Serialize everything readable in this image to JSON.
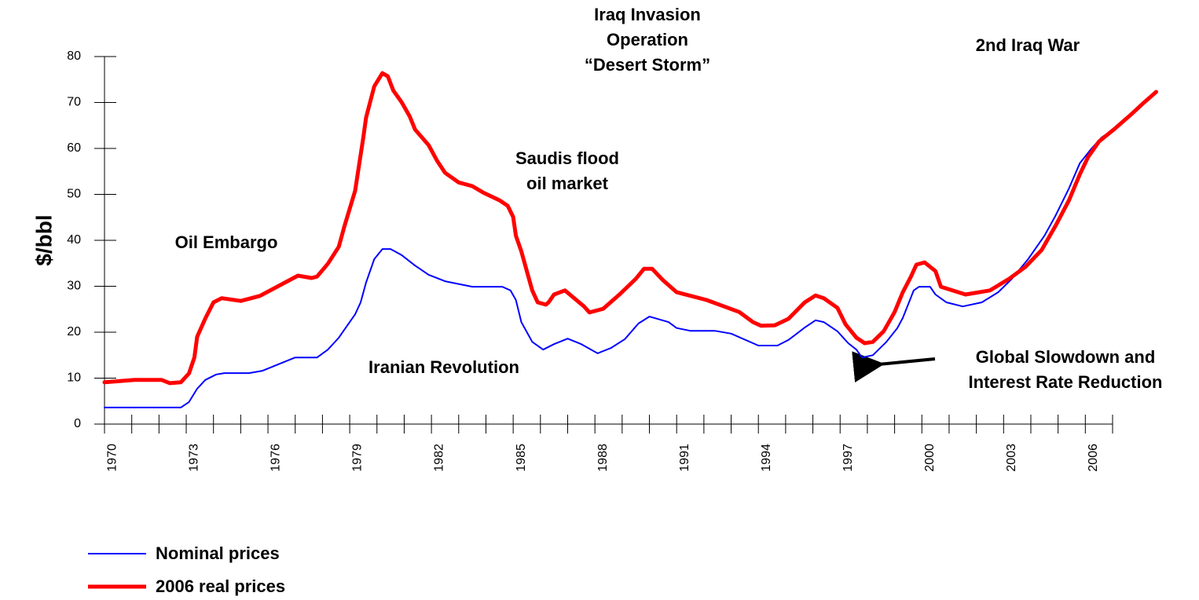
{
  "chart_data": {
    "type": "line",
    "y_label": "$/bbl",
    "xlim": [
      1970,
      2007
    ],
    "ylim": [
      0,
      80
    ],
    "yticks": [
      0,
      10,
      20,
      30,
      40,
      50,
      60,
      70,
      80
    ],
    "xticks": [
      1970,
      1973,
      1976,
      1979,
      1982,
      1985,
      1988,
      1991,
      1994,
      1997,
      2000,
      2003,
      2006
    ],
    "legend": "bottom-left",
    "annotations": [
      [
        "Oil Embargo"
      ],
      [
        "Iranian Revolution"
      ],
      [
        "Saudis flood",
        "oil market"
      ],
      [
        "Iraq Invasion",
        "Operation",
        "“Desert Storm”"
      ],
      [
        "2nd Iraq War"
      ],
      [
        "Global Slowdown and",
        "Interest Rate Reduction"
      ]
    ],
    "series": [
      {
        "name": "Nominal prices",
        "color": "#0000ff",
        "x": [
          1970,
          1972.8,
          1973.1,
          1973.4,
          1973.7,
          1974.1,
          1974.4,
          1975.3,
          1975.8,
          1977,
          1977.8,
          1978.2,
          1978.6,
          1978.8,
          1979.2,
          1979.4,
          1979.6,
          1979.9,
          1980.2,
          1980.5,
          1980.9,
          1981.4,
          1981.9,
          1982.5,
          1983.5,
          1984.6,
          1984.9,
          1985.1,
          1985.3,
          1985.7,
          1986.1,
          1986.5,
          1987,
          1987.5,
          1988.1,
          1988.6,
          1989.1,
          1989.6,
          1990,
          1990.7,
          1991,
          1991.5,
          1992.4,
          1993,
          1994,
          1994.7,
          1995.1,
          1995.7,
          1996.1,
          1996.4,
          1996.9,
          1997.3,
          1997.6,
          1997.8,
          1998.2,
          1998.7,
          1999.1,
          1999.3,
          1999.7,
          1999.9,
          2000.3,
          2000.5,
          2000.9,
          2001.5,
          2002.2,
          2002.8,
          2003.3,
          2003.9,
          2004.5,
          2004.9,
          2005.4,
          2005.8,
          2006.2,
          2006.6,
          2007.1,
          2007.7,
          2008.1,
          2008.6
        ],
        "values": [
          3.6,
          3.6,
          4.8,
          7.7,
          9.6,
          10.8,
          11.1,
          11.1,
          11.6,
          14.5,
          14.5,
          16.2,
          18.8,
          20.5,
          23.9,
          26.5,
          30.8,
          35.9,
          38.1,
          38.1,
          36.8,
          34.5,
          32.5,
          31.1,
          29.9,
          29.9,
          29.1,
          27,
          22.2,
          17.9,
          16.2,
          17.4,
          18.6,
          17.4,
          15.4,
          16.6,
          18.5,
          21.9,
          23.4,
          22.2,
          20.9,
          20.3,
          20.3,
          19.7,
          17.1,
          17.1,
          18.3,
          21,
          22.6,
          22.2,
          20.2,
          17.6,
          16.2,
          14.5,
          15,
          17.9,
          20.9,
          23.1,
          29.1,
          29.9,
          29.9,
          28.2,
          26.5,
          25.6,
          26.5,
          28.7,
          31.6,
          35.9,
          41,
          45.3,
          51.3,
          56.8,
          59.8,
          62.4,
          64.4,
          67.5,
          69.7,
          72.3
        ]
      },
      {
        "name": "2006 real prices",
        "color": "#ff0000",
        "x": [
          1970,
          1971.1,
          1972.1,
          1972.4,
          1972.8,
          1973.1,
          1973.3,
          1973.4,
          1973.7,
          1974,
          1974.3,
          1975,
          1975.7,
          1977.1,
          1977.6,
          1977.8,
          1978.2,
          1978.6,
          1978.8,
          1979.2,
          1979.3,
          1979.5,
          1979.6,
          1979.9,
          1980.2,
          1980.4,
          1980.6,
          1980.9,
          1981.2,
          1981.4,
          1981.9,
          1982.2,
          1982.5,
          1983,
          1983.5,
          1983.9,
          1984.5,
          1984.8,
          1985,
          1985.1,
          1985.3,
          1985.5,
          1985.7,
          1985.9,
          1986.2,
          1986.3,
          1986.5,
          1986.9,
          1987.6,
          1987.8,
          1988.3,
          1988.9,
          1989.5,
          1989.8,
          1990.1,
          1990.5,
          1991,
          1992.1,
          1993.3,
          1993.8,
          1994.1,
          1994.6,
          1995.1,
          1995.7,
          1996.1,
          1996.4,
          1996.9,
          1997.2,
          1997.6,
          1997.9,
          1998.2,
          1998.6,
          1999,
          1999.3,
          1999.6,
          1999.8,
          2000.1,
          2000.5,
          2000.7,
          2001.6,
          2002.5,
          2003.2,
          2003.8,
          2004.4,
          2004.9,
          2005.4,
          2005.8,
          2006.1,
          2006.5,
          2007.1,
          2007.7,
          2008.1,
          2008.6
        ],
        "values": [
          9.1,
          9.6,
          9.6,
          8.9,
          9.1,
          11,
          14.5,
          19,
          23,
          26.5,
          27.4,
          26.8,
          27.9,
          32.3,
          31.8,
          32.1,
          34.9,
          38.6,
          42.9,
          50.8,
          54.7,
          62.4,
          66.7,
          73.5,
          76.4,
          75.7,
          72.6,
          70.1,
          67,
          64.1,
          60.7,
          57.4,
          54.7,
          52.6,
          51.8,
          50.4,
          48.7,
          47.5,
          45.1,
          41,
          37.6,
          33.3,
          29.1,
          26.5,
          26,
          26.5,
          28.2,
          29.1,
          25.6,
          24.3,
          25.1,
          28.2,
          31.6,
          33.8,
          33.8,
          31.3,
          28.7,
          27,
          24.4,
          22.2,
          21.4,
          21.5,
          22.9,
          26.5,
          28,
          27.4,
          25.3,
          21.7,
          18.8,
          17.6,
          17.9,
          20.2,
          24.4,
          28.7,
          32.1,
          34.7,
          35.2,
          33.3,
          29.9,
          28.2,
          29.1,
          31.6,
          34.2,
          37.9,
          43.1,
          48.7,
          54.4,
          58.1,
          61.5,
          64.4,
          67.5,
          69.7,
          72.3
        ]
      }
    ]
  }
}
